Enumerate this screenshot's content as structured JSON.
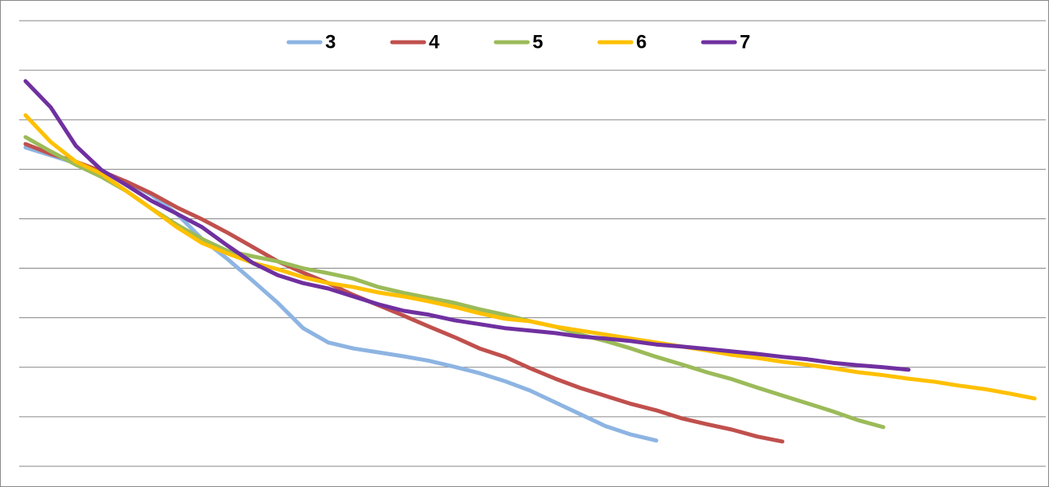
{
  "chart_data": {
    "type": "line",
    "legend": "top",
    "grid": true,
    "x": [
      0,
      1,
      2,
      3,
      4,
      5,
      6,
      7,
      8,
      9,
      10,
      11,
      12,
      13,
      14,
      15,
      16,
      17,
      18,
      19,
      20,
      21,
      22,
      23,
      24,
      25,
      26,
      27,
      28,
      29,
      30,
      31,
      32,
      33,
      34,
      35,
      36,
      37,
      38,
      39,
      40
    ],
    "xlim": [
      0,
      40
    ],
    "ylim": [
      0,
      9
    ],
    "yticks": [
      0,
      1,
      2,
      3,
      4,
      5,
      6,
      7,
      8,
      9
    ],
    "series": [
      {
        "name": "3",
        "color": "#8db4e2",
        "values": [
          6.44,
          6.28,
          6.12,
          5.96,
          5.75,
          5.48,
          5.1,
          4.59,
          4.19,
          3.75,
          3.3,
          2.79,
          2.5,
          2.38,
          2.3,
          2.22,
          2.13,
          2.01,
          1.88,
          1.72,
          1.53,
          1.29,
          1.05,
          0.81,
          0.64,
          0.52,
          null,
          null,
          null,
          null,
          null,
          null,
          null,
          null,
          null,
          null,
          null,
          null,
          null,
          null,
          null
        ]
      },
      {
        "name": "4",
        "color": "#c0504d",
        "values": [
          6.51,
          6.31,
          6.15,
          5.96,
          5.75,
          5.51,
          5.23,
          4.99,
          4.72,
          4.43,
          4.14,
          3.91,
          3.7,
          3.46,
          3.25,
          3.04,
          2.82,
          2.61,
          2.38,
          2.21,
          1.98,
          1.77,
          1.58,
          1.42,
          1.26,
          1.13,
          0.97,
          0.85,
          0.74,
          0.6,
          0.5,
          null,
          null,
          null,
          null,
          null,
          null,
          null,
          null,
          null,
          null
        ]
      },
      {
        "name": "5",
        "color": "#9bbb59",
        "values": [
          6.65,
          6.36,
          6.09,
          5.85,
          5.56,
          5.2,
          4.88,
          4.59,
          4.35,
          4.24,
          4.14,
          4.0,
          3.9,
          3.79,
          3.62,
          3.5,
          3.4,
          3.3,
          3.17,
          3.06,
          2.93,
          2.82,
          2.66,
          2.53,
          2.38,
          2.21,
          2.06,
          1.9,
          1.76,
          1.59,
          1.43,
          1.27,
          1.11,
          0.93,
          0.79,
          null,
          null,
          null,
          null,
          null,
          null
        ]
      },
      {
        "name": "6",
        "color": "#ffc000",
        "values": [
          7.09,
          6.55,
          6.15,
          5.91,
          5.56,
          5.2,
          4.83,
          4.51,
          4.3,
          4.11,
          3.98,
          3.82,
          3.7,
          3.62,
          3.51,
          3.43,
          3.33,
          3.22,
          3.09,
          2.98,
          2.93,
          2.82,
          2.74,
          2.66,
          2.58,
          2.5,
          2.42,
          2.34,
          2.25,
          2.19,
          2.11,
          2.05,
          1.98,
          1.9,
          1.84,
          1.77,
          1.71,
          1.63,
          1.56,
          1.47,
          1.37
        ]
      },
      {
        "name": "7",
        "color": "#7030a0",
        "values": [
          7.78,
          7.25,
          6.47,
          5.99,
          5.68,
          5.36,
          5.1,
          4.83,
          4.46,
          4.11,
          3.86,
          3.7,
          3.59,
          3.43,
          3.27,
          3.14,
          3.06,
          2.95,
          2.87,
          2.79,
          2.74,
          2.69,
          2.62,
          2.58,
          2.53,
          2.46,
          2.42,
          2.37,
          2.32,
          2.27,
          2.21,
          2.16,
          2.09,
          2.04,
          2.0,
          1.95,
          null,
          null,
          null,
          null,
          null
        ]
      }
    ]
  }
}
